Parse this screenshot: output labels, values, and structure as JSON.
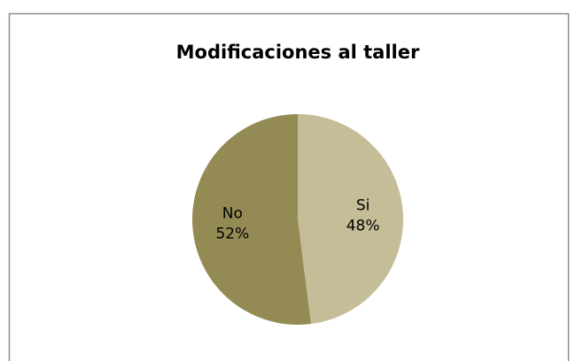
{
  "chart_data": {
    "type": "pie",
    "title": "Modificaciones al taller",
    "categories": [
      "Si",
      "No"
    ],
    "values": [
      48,
      52
    ],
    "value_labels": [
      "48%",
      "52%"
    ],
    "colors": [
      "#c4bd97",
      "#948a54"
    ]
  }
}
